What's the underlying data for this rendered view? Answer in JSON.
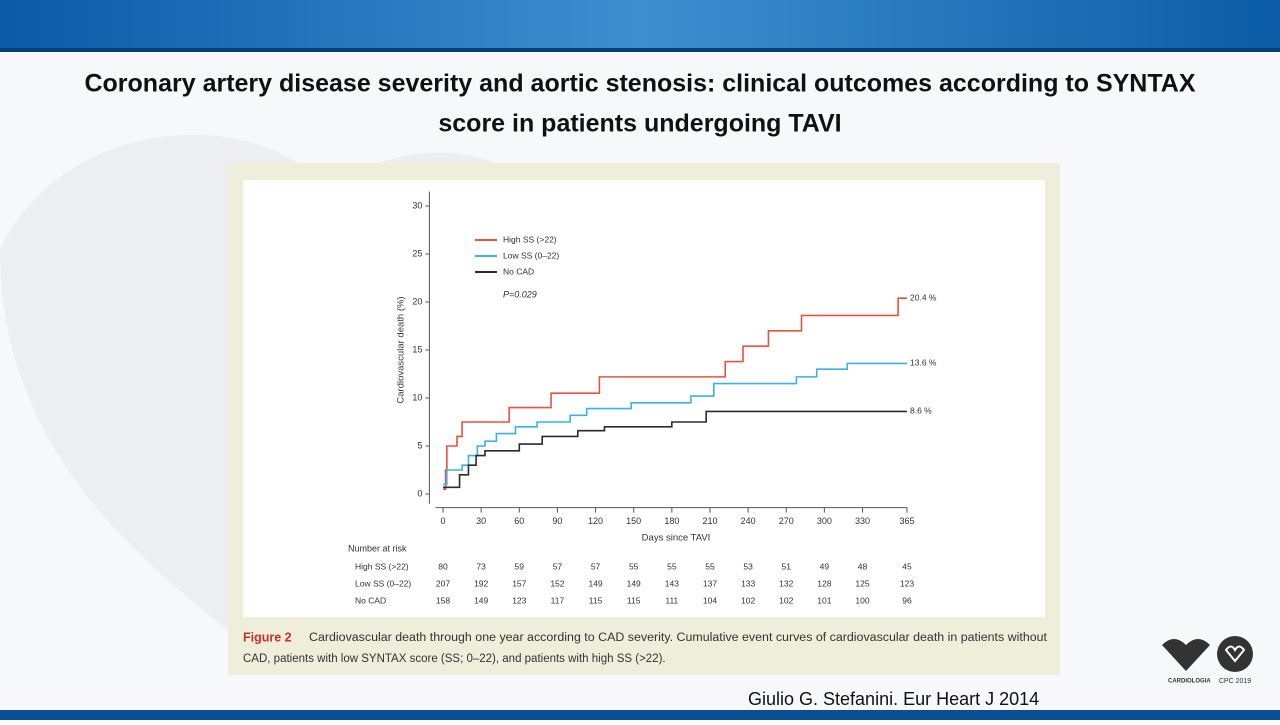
{
  "slide_title": [
    "Coronary artery disease severity and aortic stenosis: clinical outcomes according to SYNTAX",
    "score in patients undergoing TAVI"
  ],
  "chart_data": {
    "type": "line",
    "step": true,
    "xlabel": "Days since TAVI",
    "ylabel": "Cardiovascular death (%)",
    "annotation": "P=0.029",
    "xlim": [
      -6,
      365
    ],
    "xticks": [
      0,
      30,
      60,
      90,
      120,
      150,
      180,
      210,
      240,
      270,
      300,
      330,
      365
    ],
    "ylim": [
      -1,
      31.5
    ],
    "yticks": [
      0,
      5,
      10,
      15,
      20,
      25,
      30
    ],
    "series": [
      {
        "name": "High SS (>22)",
        "color": "#e8533f",
        "end_label": "20.4 %",
        "x": [
          0,
          2,
          2,
          3,
          3,
          11,
          11,
          15,
          15,
          52,
          52,
          85,
          85,
          123,
          123,
          222,
          222,
          236,
          236,
          256,
          256,
          282,
          282,
          358,
          358,
          365
        ],
        "values": [
          0.5,
          0.5,
          2.5,
          2.5,
          5,
          5,
          6,
          6,
          7.5,
          7.5,
          9,
          9,
          10.5,
          10.5,
          12.2,
          12.2,
          13.8,
          13.8,
          15.4,
          15.4,
          17,
          17,
          18.6,
          18.6,
          20.4,
          20.4
        ]
      },
      {
        "name": "Low SS (0–22)",
        "color": "#3bb3e0",
        "end_label": "13.6 %",
        "x": [
          0,
          3,
          3,
          15,
          15,
          20,
          20,
          27,
          27,
          33,
          33,
          42,
          42,
          57,
          57,
          74,
          74,
          100,
          100,
          113,
          113,
          148,
          148,
          195,
          195,
          213,
          213,
          278,
          278,
          294,
          294,
          318,
          318,
          365
        ],
        "values": [
          1,
          1,
          2.5,
          2.5,
          3,
          3,
          4,
          4,
          5,
          5,
          5.5,
          5.5,
          6.3,
          6.3,
          7,
          7,
          7.5,
          7.5,
          8.2,
          8.2,
          8.9,
          8.9,
          9.5,
          9.5,
          10.2,
          10.2,
          11.5,
          11.5,
          12.2,
          12.2,
          13,
          13,
          13.6,
          13.6
        ]
      },
      {
        "name": "No CAD",
        "color": "#2b2b2b",
        "end_label": "8.6 %",
        "x": [
          0,
          13,
          13,
          20,
          20,
          26,
          26,
          33,
          33,
          60,
          60,
          78,
          78,
          106,
          106,
          127,
          127,
          180,
          180,
          207,
          207,
          365
        ],
        "values": [
          0.7,
          0.7,
          2,
          2,
          3,
          3,
          4,
          4,
          4.5,
          4.5,
          5.2,
          5.2,
          6,
          6,
          6.6,
          6.6,
          7,
          7,
          7.5,
          7.5,
          8.6,
          8.6
        ]
      }
    ],
    "risk_table": {
      "title": "Number at risk",
      "rows": [
        {
          "name": "High SS (>22)",
          "counts": [
            80,
            73,
            59,
            57,
            57,
            55,
            55,
            55,
            53,
            51,
            49,
            48,
            45
          ]
        },
        {
          "name": "Low SS (0–22)",
          "counts": [
            207,
            192,
            157,
            152,
            149,
            149,
            143,
            137,
            133,
            132,
            128,
            125,
            123
          ]
        },
        {
          "name": "No CAD",
          "counts": [
            158,
            149,
            123,
            117,
            115,
            115,
            111,
            104,
            102,
            102,
            101,
            100,
            96
          ]
        }
      ]
    }
  },
  "caption": {
    "label": "Figure 2",
    "lines": [
      "Cardiovascular death through one year according to CAD severity. Cumulative event curves of cardiovascular death in patients without",
      "CAD, patients with low SYNTAX score (SS; 0–22), and patients with high SS (>22)."
    ]
  },
  "citation": "Giulio G. Stefanini. Eur Heart J 2014",
  "logos": [
    "CARDIOLOGIA",
    "CPC 2019"
  ]
}
